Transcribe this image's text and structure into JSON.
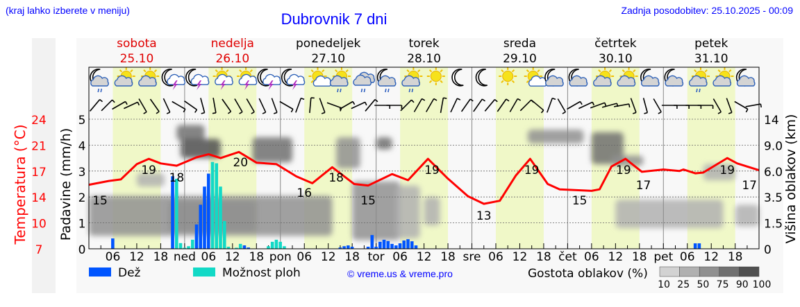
{
  "header": {
    "hint": "(kraj lahko izberete v meniju)",
    "title": "Dubrovnik 7 dni",
    "updated": "Zadnja posodobitev: 25.10.2025 - 00:09"
  },
  "days": [
    {
      "name": "sobota",
      "date": "25.10",
      "color": "#e00000"
    },
    {
      "name": "nedelja",
      "date": "26.10",
      "color": "#e00000"
    },
    {
      "name": "ponedeljek",
      "date": "27.10",
      "color": "#000000"
    },
    {
      "name": "torek",
      "date": "28.10",
      "color": "#000000"
    },
    {
      "name": "sreda",
      "date": "29.10",
      "color": "#000000"
    },
    {
      "name": "četrtek",
      "date": "30.10",
      "color": "#000000"
    },
    {
      "name": "petek",
      "date": "31.10",
      "color": "#000000"
    }
  ],
  "legend": {
    "rain": "Dež",
    "showers": "Možnost ploh",
    "credit": "© vreme.us & vreme.pro",
    "cloud_title": "Gostota oblakov (%)",
    "cloud_levels": [
      "10",
      "25",
      "50",
      "75",
      "90",
      "100"
    ]
  },
  "colors": {
    "rain": "#0055ff",
    "showers": "#12d9c6",
    "temperature": "#ff0000",
    "daylight": "#f0f8c8",
    "link": "#0000ff",
    "cloud_scale": [
      "#d2d2d2",
      "#b0b0b0",
      "#909090",
      "#707070",
      "#505050"
    ]
  },
  "chart_data": {
    "type": "meteogram",
    "hours_total": 168,
    "temp_axis": {
      "label": "Temperatura (°C)",
      "range": [
        7,
        24
      ],
      "ticks": [
        "24",
        "21",
        "17",
        "14",
        "10",
        "7"
      ]
    },
    "precip_axis": {
      "label": "Padavine (mm/h)",
      "range": [
        0,
        5
      ],
      "ticks": [
        "0",
        "1",
        "2",
        "3",
        "4",
        "5"
      ]
    },
    "cloud_axis": {
      "label": "Višina oblakov (km)",
      "ticks": [
        "0",
        "1.5",
        "3.5",
        "6.0",
        "9.0",
        "14"
      ]
    },
    "x_ticks": [
      {
        "h": 6,
        "label": "06"
      },
      {
        "h": 12,
        "label": "12"
      },
      {
        "h": 18,
        "label": "18"
      },
      {
        "h": 24,
        "label": "ned"
      },
      {
        "h": 30,
        "label": "06"
      },
      {
        "h": 36,
        "label": "12"
      },
      {
        "h": 42,
        "label": "18"
      },
      {
        "h": 48,
        "label": "pon"
      },
      {
        "h": 54,
        "label": "06"
      },
      {
        "h": 60,
        "label": "12"
      },
      {
        "h": 66,
        "label": "18"
      },
      {
        "h": 72,
        "label": "tor"
      },
      {
        "h": 78,
        "label": "06"
      },
      {
        "h": 84,
        "label": "12"
      },
      {
        "h": 90,
        "label": "18"
      },
      {
        "h": 96,
        "label": "sre"
      },
      {
        "h": 102,
        "label": "06"
      },
      {
        "h": 108,
        "label": "12"
      },
      {
        "h": 114,
        "label": "18"
      },
      {
        "h": 120,
        "label": "čet"
      },
      {
        "h": 126,
        "label": "06"
      },
      {
        "h": 132,
        "label": "12"
      },
      {
        "h": 138,
        "label": "18"
      },
      {
        "h": 144,
        "label": "pet"
      },
      {
        "h": 150,
        "label": "06"
      },
      {
        "h": 156,
        "label": "12"
      },
      {
        "h": 162,
        "label": "18"
      }
    ],
    "temperature": [
      [
        0,
        15.4
      ],
      [
        5,
        15.9
      ],
      [
        8,
        16.1
      ],
      [
        12,
        18.1
      ],
      [
        15,
        18.8
      ],
      [
        18,
        18.2
      ],
      [
        22,
        17.9
      ],
      [
        27,
        19.0
      ],
      [
        30,
        19.4
      ],
      [
        33,
        18.9
      ],
      [
        37.6,
        19.7
      ],
      [
        42,
        18.3
      ],
      [
        47,
        18.1
      ],
      [
        52,
        16.5
      ],
      [
        56,
        15.6
      ],
      [
        61,
        17.7
      ],
      [
        66.5,
        15.5
      ],
      [
        70,
        15.3
      ],
      [
        76,
        16.8
      ],
      [
        80,
        16.0
      ],
      [
        85,
        18.8
      ],
      [
        90,
        16.2
      ],
      [
        95,
        13.9
      ],
      [
        99,
        12.9
      ],
      [
        103,
        13.3
      ],
      [
        107,
        16.6
      ],
      [
        110.6,
        18.8
      ],
      [
        115,
        15.5
      ],
      [
        118,
        14.8
      ],
      [
        126,
        14.6
      ],
      [
        128,
        14.8
      ],
      [
        131,
        17.8
      ],
      [
        134.5,
        18.8
      ],
      [
        138.6,
        17.1
      ],
      [
        144,
        17.4
      ],
      [
        148,
        17.2
      ],
      [
        149,
        17.4
      ],
      [
        152,
        16.9
      ],
      [
        154,
        17.0
      ],
      [
        160,
        18.9
      ],
      [
        162.5,
        18.2
      ],
      [
        168,
        17.3
      ]
    ],
    "temp_labels": [
      {
        "h": 0,
        "value": "15"
      },
      {
        "h": 15,
        "value": "19"
      },
      {
        "h": 22,
        "value": "18"
      },
      {
        "h": 38,
        "value": "20"
      },
      {
        "h": 54,
        "value": "16"
      },
      {
        "h": 62,
        "value": "18"
      },
      {
        "h": 70,
        "value": "15"
      },
      {
        "h": 86,
        "value": "19"
      },
      {
        "h": 99,
        "value": "13"
      },
      {
        "h": 111,
        "value": "19"
      },
      {
        "h": 123,
        "value": "15"
      },
      {
        "h": 134,
        "value": "19"
      },
      {
        "h": 139,
        "value": "17"
      },
      {
        "h": 160,
        "value": "19"
      },
      {
        "h": 168,
        "value": "17"
      }
    ],
    "rain": [
      [
        6,
        0.4
      ],
      [
        21,
        2.8
      ],
      [
        27,
        0.94
      ],
      [
        28,
        1.7
      ],
      [
        29,
        2.4
      ],
      [
        30,
        2.9
      ],
      [
        39,
        0.13
      ],
      [
        40,
        0.05
      ],
      [
        63,
        0.05
      ],
      [
        64,
        0.1
      ],
      [
        65,
        0.13
      ],
      [
        66,
        0.08
      ],
      [
        70,
        0.08
      ],
      [
        71,
        0.53
      ],
      [
        72,
        0.08
      ],
      [
        73,
        0.27
      ],
      [
        74,
        0.35
      ],
      [
        75,
        0.3
      ],
      [
        76,
        0.19
      ],
      [
        77,
        0.13
      ],
      [
        78,
        0.21
      ],
      [
        79,
        0.32
      ],
      [
        80,
        0.37
      ],
      [
        81,
        0.29
      ],
      [
        82,
        0.13
      ],
      [
        152,
        0.21
      ],
      [
        153,
        0.21
      ]
    ],
    "showers": [
      [
        22,
        2.7
      ],
      [
        23,
        0.22
      ],
      [
        24,
        0.04
      ],
      [
        25,
        0.1
      ],
      [
        26,
        0.35
      ],
      [
        27,
        0.5
      ],
      [
        28,
        0.4
      ],
      [
        31,
        3.35
      ],
      [
        32,
        3.3
      ],
      [
        33,
        2.4
      ],
      [
        34,
        1.07
      ],
      [
        35,
        0.08
      ],
      [
        37,
        0.04
      ],
      [
        38,
        0.19
      ],
      [
        45,
        0.1
      ],
      [
        46,
        0.27
      ],
      [
        47,
        0.35
      ],
      [
        48,
        0.27
      ],
      [
        49,
        0.1
      ]
    ],
    "clouds": [
      {
        "h": [
          0,
          61
        ],
        "km": [
          0.75,
          3.6
        ],
        "density": 50
      },
      {
        "h": [
          20,
          42
        ],
        "km": [
          1.0,
          3.2
        ],
        "density": 60
      },
      {
        "h": [
          12,
          19
        ],
        "km": [
          4.5,
          5.8
        ],
        "density": 40
      },
      {
        "h": [
          22,
          29
        ],
        "km": [
          9.9,
          12.9
        ],
        "density": 75
      },
      {
        "h": [
          23,
          33
        ],
        "km": [
          7.5,
          10.2
        ],
        "density": 90
      },
      {
        "h": [
          41,
          51
        ],
        "km": [
          7.0,
          10.5
        ],
        "density": 75
      },
      {
        "h": [
          62,
          68
        ],
        "km": [
          6.3,
          10.5
        ],
        "density": 60
      },
      {
        "h": [
          72,
          76
        ],
        "km": [
          8.5,
          10.5
        ],
        "density": 75
      },
      {
        "h": [
          66,
          78
        ],
        "km": [
          0.5,
          5.0
        ],
        "density": 50
      },
      {
        "h": [
          77,
          83
        ],
        "km": [
          0.6,
          4.6
        ],
        "density": 40
      },
      {
        "h": [
          84,
          88
        ],
        "km": [
          1.35,
          3.5
        ],
        "density": 40
      },
      {
        "h": [
          110,
          124
        ],
        "km": [
          9.3,
          12.0
        ],
        "density": 60
      },
      {
        "h": [
          126,
          134
        ],
        "km": [
          6.8,
          11.5
        ],
        "density": 75
      },
      {
        "h": [
          131,
          139
        ],
        "km": [
          6.6,
          7.8
        ],
        "density": 60
      },
      {
        "h": [
          132,
          159
        ],
        "km": [
          1.2,
          3.3
        ],
        "density": 40
      },
      {
        "h": [
          154,
          162
        ],
        "km": [
          5.1,
          6.8
        ],
        "density": 25
      },
      {
        "h": [
          162,
          168
        ],
        "km": [
          1.3,
          2.9
        ],
        "density": 40
      }
    ],
    "icons": [
      "night-cloud-rain",
      "sun-cloud",
      "sun-cloud",
      "night-thunder",
      "night-thunder",
      "sun-thunder",
      "sun-thunder",
      "night-thunder",
      "night-thunder",
      "sun-small-cloud",
      "sun-cloud-rain",
      "cloud-rain",
      "night-cloud-rain",
      "sun-cloud-rain",
      "sun",
      "moon",
      "moon",
      "sun",
      "sun-small-cloud",
      "night-cloud",
      "night-cloud",
      "sun-cloud",
      "sun-cloud",
      "night-cloud",
      "night-cloud",
      "sun-cloud-rain",
      "sun-cloud",
      "night-cloud"
    ],
    "wind_dir": [
      40,
      45,
      60,
      65,
      150,
      145,
      155,
      120,
      125,
      165,
      170,
      145,
      150,
      150,
      155,
      160,
      120,
      20,
      5,
      160,
      110,
      60,
      65,
      40,
      90,
      90,
      45,
      30,
      30,
      10,
      25,
      35,
      35,
      40,
      35,
      30,
      45,
      130,
      20,
      150,
      60,
      65,
      70,
      75,
      80,
      160,
      165,
      150,
      90,
      90,
      90,
      90,
      150,
      160,
      120,
      80
    ]
  }
}
